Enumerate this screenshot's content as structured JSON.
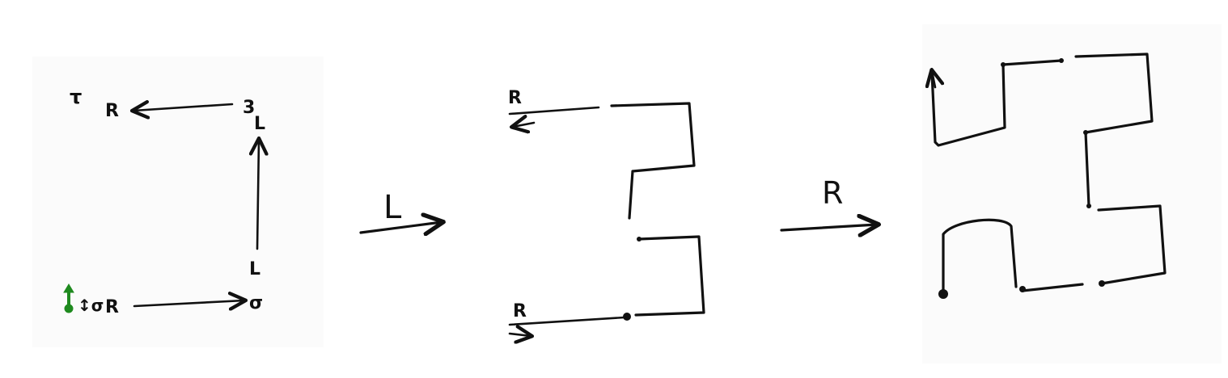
{
  "accent_colors": {
    "ink": "#111111",
    "start_marker": "#1f8a1f",
    "paper": "#fbfbfb"
  },
  "panel_1": {
    "top_left_glyph": "τ",
    "top_left_label": "R",
    "top_right_label": "3",
    "top_right_sub": "L",
    "bottom_right_label": "L",
    "bottom_right_glyph": "σ",
    "bottom_left_glyph": "↕σ",
    "bottom_left_label": "R"
  },
  "transition_1": {
    "label": "L"
  },
  "panel_2": {
    "top_label": "R",
    "bottom_label": "R"
  },
  "transition_2": {
    "label": "R"
  }
}
